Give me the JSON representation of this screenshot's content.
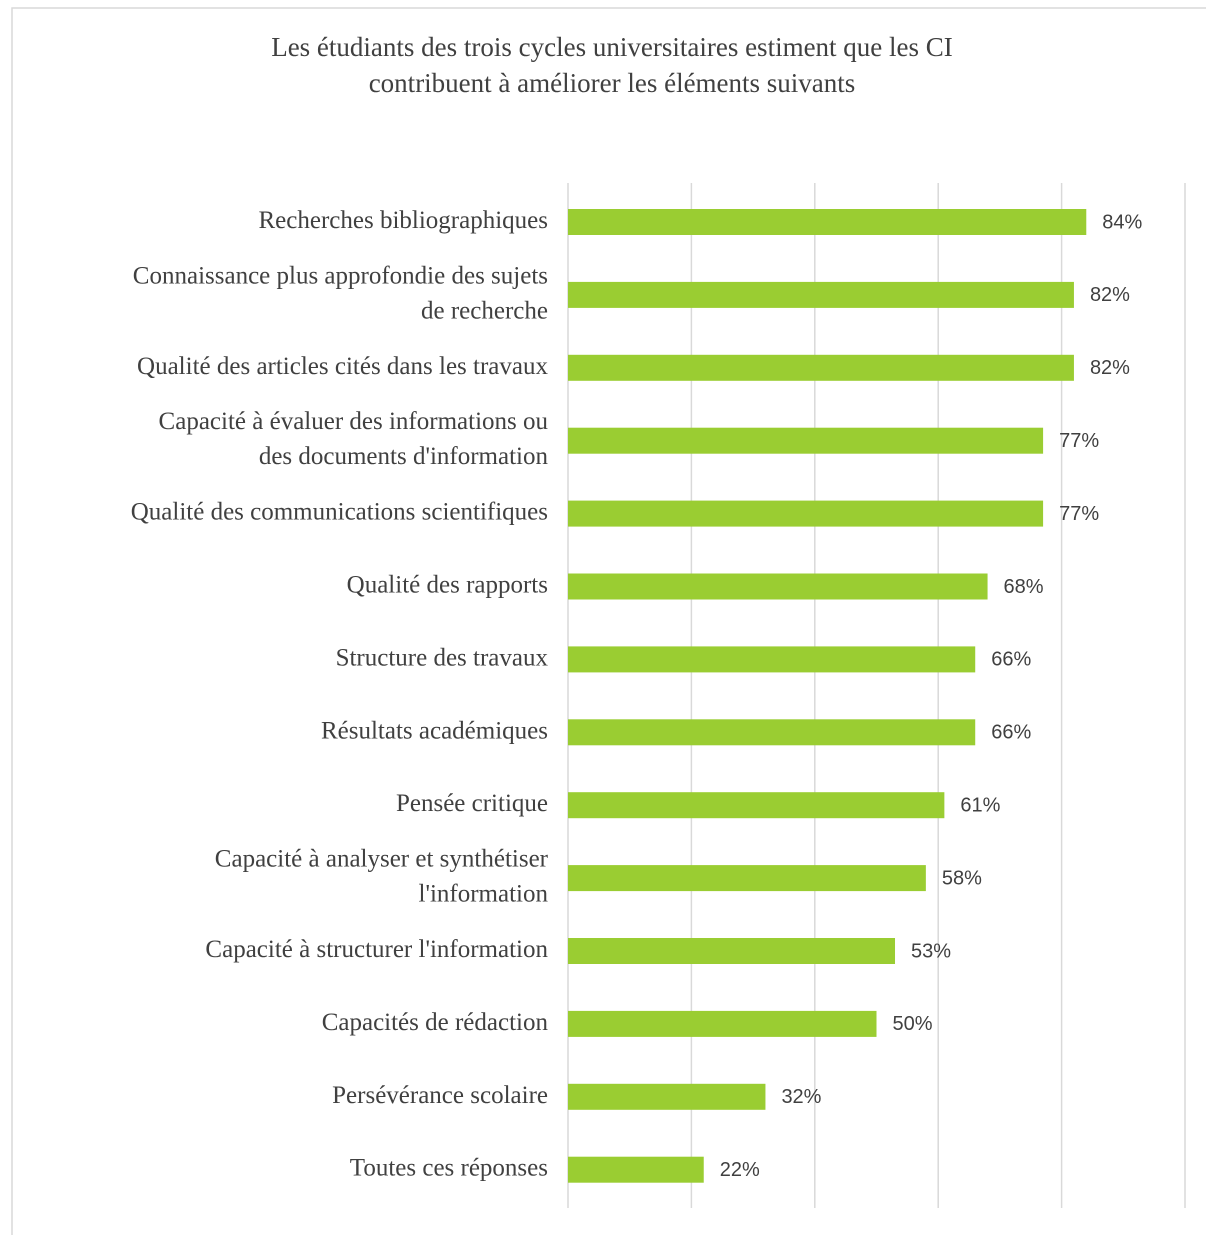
{
  "chart_data": {
    "type": "barh",
    "title": [
      "Les étudiants des trois cycles universitaires estiment que les CI",
      "contribuent à améliorer les éléments suivants"
    ],
    "categories": [
      "Recherches bibliographiques",
      "Connaissance plus approfondie des sujets\nde recherche",
      "Qualité des articles cités dans les travaux",
      "Capacité à évaluer des informations ou\ndes documents d'information",
      "Qualité des communications scientifiques",
      "Qualité des rapports",
      "Structure des travaux",
      "Résultats académiques",
      "Pensée critique",
      "Capacité à analyser et synthétiser\nl'information",
      "Capacité à structurer l'information",
      "Capacités de rédaction",
      "Persévérance scolaire",
      "Toutes ces réponses"
    ],
    "values": [
      84,
      82,
      82,
      77,
      77,
      68,
      66,
      66,
      61,
      58,
      53,
      50,
      32,
      22
    ],
    "value_labels": [
      "84%",
      "82%",
      "82%",
      "77%",
      "77%",
      "68%",
      "66%",
      "66%",
      "61%",
      "58%",
      "53%",
      "50%",
      "32%",
      "22%"
    ],
    "color": "#9acd32",
    "xlim": [
      0,
      100
    ],
    "xticks": [
      0,
      20,
      40,
      60,
      80,
      100
    ],
    "grid": true
  }
}
